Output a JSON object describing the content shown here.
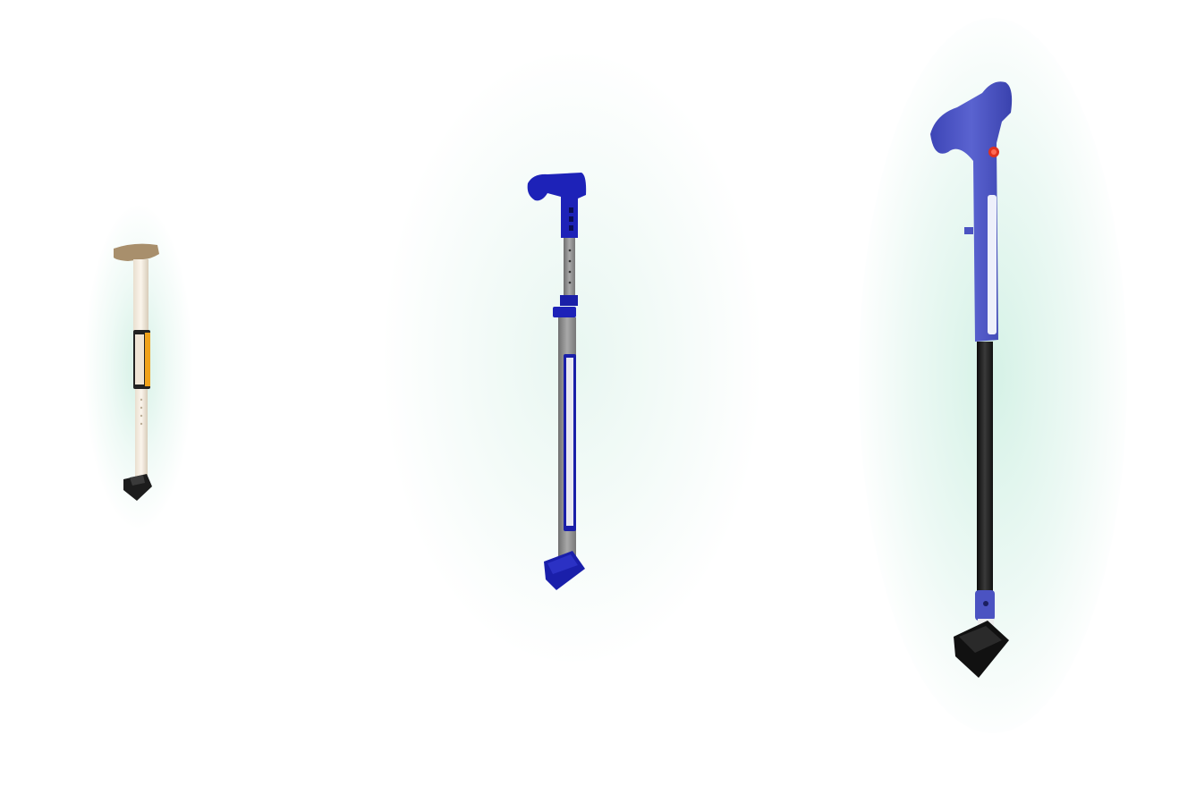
{
  "scene": {
    "background": "#ffffff",
    "glow_color": "#cfeee3",
    "canes": [
      {
        "id": "small-cane",
        "handle_color": "#a88f6c",
        "shaft_color": "#f1e7d8",
        "band_color": "#f0a21a",
        "tip_color": "#1c1c1c"
      },
      {
        "id": "medium-cane",
        "handle_color": "#1d22b8",
        "shaft_color": "#8c8c8c",
        "tip_color": "#1a1faa"
      },
      {
        "id": "large-cane",
        "handle_color": "#4b53c2",
        "button_color": "#e0301e",
        "shaft_color": "#1a1a1a",
        "tip_color": "#111111"
      }
    ]
  }
}
